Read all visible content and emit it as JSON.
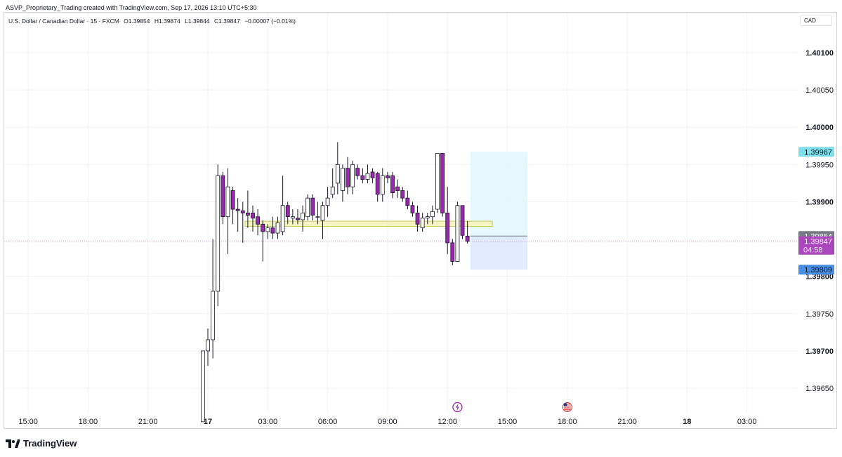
{
  "header": {
    "created_by": "ASVP_Proprietary_Trading created with TradingView.com, Sep 17, 2026 13:10 UTC+5:30"
  },
  "legend": {
    "symbol": "U.S. Dollar / Canadian Dollar · 15 · FXCM",
    "open": "O1.39854",
    "high": "H1.39874",
    "low": "L1.39844",
    "close": "C1.39847",
    "change": "−0.00007 (−0.01%)"
  },
  "currency": "CAD",
  "brand": "TradingView",
  "colors": {
    "bull_body": "#ffffff",
    "bear_body": "#9c27b0",
    "wick": "#131722",
    "profit_zone": "#e0f7fa",
    "loss_zone": "#dbe8fd",
    "target_badge": "#80deea",
    "stop_badge": "#4a90e2",
    "current_badge": "#ab47bc",
    "open_badge": "#787b86",
    "level_band": "#f5f5c4"
  },
  "chart_data": {
    "type": "candlestick",
    "title": "U.S. Dollar / Canadian Dollar · 15 · FXCM",
    "ylim": [
      1.39615,
      1.40148
    ],
    "y_ticks": [
      {
        "value": 1.401,
        "label": "1.40100",
        "bold": true
      },
      {
        "value": 1.4005,
        "label": "1.40050",
        "bold": false
      },
      {
        "value": 1.4,
        "label": "1.40000",
        "bold": true
      },
      {
        "value": 1.3995,
        "label": "1.39950",
        "bold": false
      },
      {
        "value": 1.399,
        "label": "1.39900",
        "bold": true
      },
      {
        "value": 1.398,
        "label": "1.39800",
        "bold": true
      },
      {
        "value": 1.3975,
        "label": "1.39750",
        "bold": false
      },
      {
        "value": 1.397,
        "label": "1.39700",
        "bold": true
      },
      {
        "value": 1.3965,
        "label": "1.39650",
        "bold": false
      }
    ],
    "x_ticks": [
      {
        "time": "Sep 16 15:00",
        "label": "15:00",
        "bold": false
      },
      {
        "time": "Sep 16 18:00",
        "label": "18:00",
        "bold": false
      },
      {
        "time": "Sep 16 21:00",
        "label": "21:00",
        "bold": false
      },
      {
        "time": "Sep 17 00:00",
        "label": "17",
        "bold": true
      },
      {
        "time": "Sep 17 03:00",
        "label": "03:00",
        "bold": false
      },
      {
        "time": "Sep 17 06:00",
        "label": "06:00",
        "bold": false
      },
      {
        "time": "Sep 17 09:00",
        "label": "09:00",
        "bold": false
      },
      {
        "time": "Sep 17 12:00",
        "label": "12:00",
        "bold": false
      },
      {
        "time": "Sep 17 15:00",
        "label": "15:00",
        "bold": false
      },
      {
        "time": "Sep 17 18:00",
        "label": "18:00",
        "bold": false
      },
      {
        "time": "Sep 17 21:00",
        "label": "21:00",
        "bold": false
      },
      {
        "time": "Sep 18 00:00",
        "label": "18",
        "bold": true
      },
      {
        "time": "Sep 18 03:00",
        "label": "03:00",
        "bold": false
      }
    ],
    "candles": [
      {
        "t": "23:45",
        "o": 1.39605,
        "h": 1.397,
        "l": 1.39605,
        "c": 1.397
      },
      {
        "t": "00:00",
        "o": 1.397,
        "h": 1.3973,
        "l": 1.3968,
        "c": 1.39715
      },
      {
        "t": "00:15",
        "o": 1.39715,
        "h": 1.3985,
        "l": 1.3969,
        "c": 1.3978
      },
      {
        "t": "00:30",
        "o": 1.3978,
        "h": 1.3995,
        "l": 1.3976,
        "c": 1.39935
      },
      {
        "t": "00:45",
        "o": 1.39935,
        "h": 1.3994,
        "l": 1.3987,
        "c": 1.3988
      },
      {
        "t": "01:00",
        "o": 1.3988,
        "h": 1.39945,
        "l": 1.3983,
        "c": 1.3992
      },
      {
        "t": "01:15",
        "o": 1.39915,
        "h": 1.3992,
        "l": 1.3987,
        "c": 1.3989
      },
      {
        "t": "01:30",
        "o": 1.3989,
        "h": 1.39905,
        "l": 1.3986,
        "c": 1.39888
      },
      {
        "t": "01:45",
        "o": 1.39888,
        "h": 1.399,
        "l": 1.39845,
        "c": 1.39885
      },
      {
        "t": "02:00",
        "o": 1.39885,
        "h": 1.39915,
        "l": 1.39865,
        "c": 1.39882
      },
      {
        "t": "02:15",
        "o": 1.39885,
        "h": 1.39895,
        "l": 1.3986,
        "c": 1.39878
      },
      {
        "t": "02:30",
        "o": 1.3988,
        "h": 1.3989,
        "l": 1.39855,
        "c": 1.3987
      },
      {
        "t": "02:45",
        "o": 1.3987,
        "h": 1.39875,
        "l": 1.3982,
        "c": 1.3986
      },
      {
        "t": "03:00",
        "o": 1.3986,
        "h": 1.3987,
        "l": 1.3985,
        "c": 1.39865
      },
      {
        "t": "03:15",
        "o": 1.39865,
        "h": 1.3988,
        "l": 1.3985,
        "c": 1.39858
      },
      {
        "t": "03:30",
        "o": 1.39858,
        "h": 1.3988,
        "l": 1.3985,
        "c": 1.39872
      },
      {
        "t": "03:45",
        "o": 1.3986,
        "h": 1.39935,
        "l": 1.39855,
        "c": 1.39895
      },
      {
        "t": "04:00",
        "o": 1.39895,
        "h": 1.399,
        "l": 1.3987,
        "c": 1.3988
      },
      {
        "t": "04:15",
        "o": 1.39878,
        "h": 1.3989,
        "l": 1.3987,
        "c": 1.3988
      },
      {
        "t": "04:30",
        "o": 1.39878,
        "h": 1.3989,
        "l": 1.3987,
        "c": 1.39876
      },
      {
        "t": "04:45",
        "o": 1.39876,
        "h": 1.39895,
        "l": 1.3986,
        "c": 1.39885
      },
      {
        "t": "05:00",
        "o": 1.3988,
        "h": 1.3991,
        "l": 1.39875,
        "c": 1.39905
      },
      {
        "t": "05:15",
        "o": 1.39905,
        "h": 1.3991,
        "l": 1.39875,
        "c": 1.39882
      },
      {
        "t": "05:30",
        "o": 1.3988,
        "h": 1.399,
        "l": 1.3987,
        "c": 1.3988
      },
      {
        "t": "05:45",
        "o": 1.39875,
        "h": 1.399,
        "l": 1.3985,
        "c": 1.39895
      },
      {
        "t": "06:00",
        "o": 1.39895,
        "h": 1.3992,
        "l": 1.3988,
        "c": 1.39905
      },
      {
        "t": "06:15",
        "o": 1.3991,
        "h": 1.39945,
        "l": 1.39905,
        "c": 1.3992
      },
      {
        "t": "06:30",
        "o": 1.39925,
        "h": 1.3998,
        "l": 1.3991,
        "c": 1.3995
      },
      {
        "t": "06:45",
        "o": 1.39915,
        "h": 1.3995,
        "l": 1.399,
        "c": 1.39945
      },
      {
        "t": "07:00",
        "o": 1.39945,
        "h": 1.3996,
        "l": 1.3991,
        "c": 1.3992
      },
      {
        "t": "07:15",
        "o": 1.3992,
        "h": 1.39955,
        "l": 1.3991,
        "c": 1.3995
      },
      {
        "t": "07:30",
        "o": 1.39945,
        "h": 1.3995,
        "l": 1.3993,
        "c": 1.39935
      },
      {
        "t": "07:45",
        "o": 1.39935,
        "h": 1.39945,
        "l": 1.39925,
        "c": 1.3993
      },
      {
        "t": "08:00",
        "o": 1.3993,
        "h": 1.3995,
        "l": 1.39925,
        "c": 1.39938
      },
      {
        "t": "08:15",
        "o": 1.3994,
        "h": 1.39945,
        "l": 1.39925,
        "c": 1.39932
      },
      {
        "t": "08:30",
        "o": 1.39938,
        "h": 1.3994,
        "l": 1.399,
        "c": 1.3991
      },
      {
        "t": "08:45",
        "o": 1.3991,
        "h": 1.39945,
        "l": 1.399,
        "c": 1.39935
      },
      {
        "t": "09:00",
        "o": 1.39935,
        "h": 1.3994,
        "l": 1.39925,
        "c": 1.39932
      },
      {
        "t": "09:15",
        "o": 1.39935,
        "h": 1.3994,
        "l": 1.39905,
        "c": 1.39912
      },
      {
        "t": "09:30",
        "o": 1.3992,
        "h": 1.3993,
        "l": 1.39905,
        "c": 1.39915
      },
      {
        "t": "09:45",
        "o": 1.39915,
        "h": 1.3992,
        "l": 1.399,
        "c": 1.39905
      },
      {
        "t": "10:00",
        "o": 1.39905,
        "h": 1.39915,
        "l": 1.3989,
        "c": 1.39895
      },
      {
        "t": "10:15",
        "o": 1.39895,
        "h": 1.399,
        "l": 1.3988,
        "c": 1.39885
      },
      {
        "t": "10:30",
        "o": 1.39885,
        "h": 1.39895,
        "l": 1.3986,
        "c": 1.3987
      },
      {
        "t": "10:45",
        "o": 1.39865,
        "h": 1.39885,
        "l": 1.3986,
        "c": 1.39878
      },
      {
        "t": "11:00",
        "o": 1.39878,
        "h": 1.39885,
        "l": 1.3987,
        "c": 1.3988
      },
      {
        "t": "11:15",
        "o": 1.3988,
        "h": 1.39895,
        "l": 1.3987,
        "c": 1.39887
      },
      {
        "t": "11:30",
        "o": 1.3989,
        "h": 1.39965,
        "l": 1.39885,
        "c": 1.39965
      },
      {
        "t": "11:45",
        "o": 1.39965,
        "h": 1.39965,
        "l": 1.3988,
        "c": 1.39885
      },
      {
        "t": "12:00",
        "o": 1.39885,
        "h": 1.3992,
        "l": 1.3983,
        "c": 1.39845
      },
      {
        "t": "12:15",
        "o": 1.39845,
        "h": 1.3985,
        "l": 1.39815,
        "c": 1.3982
      },
      {
        "t": "12:30",
        "o": 1.3982,
        "h": 1.399,
        "l": 1.3982,
        "c": 1.39895
      },
      {
        "t": "12:45",
        "o": 1.39895,
        "h": 1.39895,
        "l": 1.3985,
        "c": 1.39855
      },
      {
        "t": "13:00",
        "o": 1.39854,
        "h": 1.39874,
        "l": 1.39844,
        "c": 1.39847
      }
    ],
    "level_band": {
      "from": 1.39868,
      "to": 1.39873,
      "start": "02:00",
      "end": "14:15"
    },
    "position": {
      "type": "long",
      "start": "13:15",
      "end": "16:00",
      "entry": 1.39854,
      "target": 1.39967,
      "stop": 1.39809
    },
    "price_badges": [
      {
        "value": 1.39967,
        "label": "1.39967",
        "role": "target"
      },
      {
        "value": 1.39854,
        "label": "1.39854",
        "role": "open"
      },
      {
        "value": 1.39847,
        "label": "1.39847",
        "sublabel": "04:58",
        "role": "current"
      },
      {
        "value": 1.39809,
        "label": "1.39809",
        "role": "stop"
      }
    ],
    "events": [
      {
        "time": "12:30",
        "icon": "lightning-icon"
      },
      {
        "time": "18:00",
        "icon": "us-flag-icon"
      }
    ]
  }
}
